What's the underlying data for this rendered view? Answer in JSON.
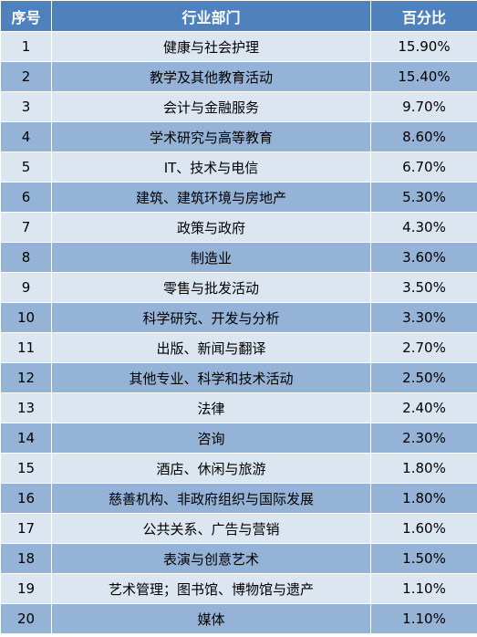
{
  "table": {
    "headers": {
      "index": "序号",
      "sector": "行业部门",
      "percent": "百分比"
    },
    "rows": [
      {
        "index": "1",
        "sector": "健康与社会护理",
        "percent": "15.90%"
      },
      {
        "index": "2",
        "sector": "教学及其他教育活动",
        "percent": "15.40%"
      },
      {
        "index": "3",
        "sector": "会计与金融服务",
        "percent": "9.70%"
      },
      {
        "index": "4",
        "sector": "学术研究与高等教育",
        "percent": "8.60%"
      },
      {
        "index": "5",
        "sector": "IT、技术与电信",
        "percent": "6.70%"
      },
      {
        "index": "6",
        "sector": "建筑、建筑环境与房地产",
        "percent": "5.30%"
      },
      {
        "index": "7",
        "sector": "政策与政府",
        "percent": "4.30%"
      },
      {
        "index": "8",
        "sector": "制造业",
        "percent": "3.60%"
      },
      {
        "index": "9",
        "sector": "零售与批发活动",
        "percent": "3.50%"
      },
      {
        "index": "10",
        "sector": "科学研究、开发与分析",
        "percent": "3.30%"
      },
      {
        "index": "11",
        "sector": "出版、新闻与翻译",
        "percent": "2.70%"
      },
      {
        "index": "12",
        "sector": "其他专业、科学和技术活动",
        "percent": "2.50%"
      },
      {
        "index": "13",
        "sector": "法律",
        "percent": "2.40%"
      },
      {
        "index": "14",
        "sector": "咨询",
        "percent": "2.30%"
      },
      {
        "index": "15",
        "sector": "酒店、休闲与旅游",
        "percent": "1.80%"
      },
      {
        "index": "16",
        "sector": "慈善机构、非政府组织与国际发展",
        "percent": "1.80%"
      },
      {
        "index": "17",
        "sector": "公共关系、广告与营销",
        "percent": "1.60%"
      },
      {
        "index": "18",
        "sector": "表演与创意艺术",
        "percent": "1.50%"
      },
      {
        "index": "19",
        "sector": "艺术管理；图书馆、博物馆与遗产",
        "percent": "1.10%"
      },
      {
        "index": "20",
        "sector": "媒体",
        "percent": "1.10%"
      }
    ]
  },
  "colors": {
    "header_bg": "#4f81bd",
    "row_light": "#dce6f1",
    "row_dark": "#95b3d7"
  }
}
